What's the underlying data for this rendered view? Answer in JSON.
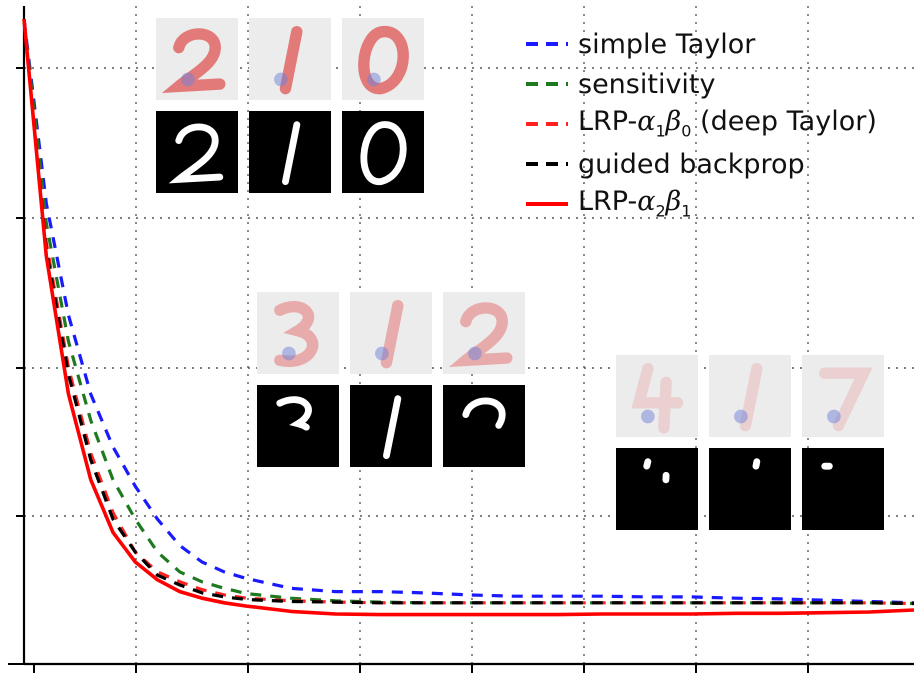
{
  "chart_data": {
    "type": "line",
    "title": "",
    "xlabel": "",
    "ylabel": "",
    "grid": true,
    "legend_position": "top-right",
    "xlim": [
      0,
      20
    ],
    "ylim": [
      0,
      1
    ],
    "series": [
      {
        "name": "simple Taylor",
        "style": "dashed",
        "color": "#1a1aff",
        "x": [
          0,
          0.5,
          1,
          1.5,
          2,
          2.5,
          3,
          3.5,
          4,
          4.5,
          5,
          6,
          7,
          8,
          9,
          10,
          11,
          12,
          13,
          14,
          15,
          16,
          17,
          18,
          19,
          20
        ],
        "y": [
          0.98,
          0.7,
          0.53,
          0.41,
          0.33,
          0.27,
          0.22,
          0.18,
          0.155,
          0.14,
          0.13,
          0.115,
          0.11,
          0.11,
          0.108,
          0.105,
          0.103,
          0.103,
          0.103,
          0.102,
          0.102,
          0.1,
          0.099,
          0.097,
          0.095,
          0.093
        ]
      },
      {
        "name": "sensitivity",
        "style": "dashed",
        "color": "#1f7a1f",
        "x": [
          0,
          0.5,
          1,
          1.5,
          2,
          2.5,
          3,
          3.5,
          4,
          4.5,
          5,
          6,
          7,
          8,
          9,
          10,
          11,
          12,
          13,
          14,
          15,
          16,
          17,
          18,
          19,
          20
        ],
        "y": [
          0.98,
          0.67,
          0.49,
          0.37,
          0.28,
          0.22,
          0.17,
          0.14,
          0.125,
          0.115,
          0.107,
          0.1,
          0.096,
          0.094,
          0.093,
          0.093,
          0.093,
          0.093,
          0.093,
          0.093,
          0.093,
          0.093,
          0.093,
          0.093,
          0.093,
          0.092
        ]
      },
      {
        "name": "LRP-α₁β₀ (deep Taylor)",
        "style": "dashed",
        "color": "#ff2020",
        "x": [
          0,
          0.5,
          1,
          1.5,
          2,
          2.5,
          3,
          3.5,
          4,
          4.5,
          5,
          6,
          7,
          8,
          9,
          10,
          11,
          12,
          13,
          14,
          15,
          16,
          17,
          18,
          19,
          20
        ],
        "y": [
          0.98,
          0.64,
          0.45,
          0.32,
          0.23,
          0.17,
          0.14,
          0.125,
          0.113,
          0.105,
          0.1,
          0.096,
          0.094,
          0.093,
          0.093,
          0.093,
          0.093,
          0.093,
          0.093,
          0.093,
          0.093,
          0.093,
          0.093,
          0.093,
          0.093,
          0.092
        ]
      },
      {
        "name": "guided backprop",
        "style": "dashed",
        "color": "#000000",
        "x": [
          0,
          0.5,
          1,
          1.5,
          2,
          2.5,
          3,
          3.5,
          4,
          4.5,
          5,
          6,
          7,
          8,
          9,
          10,
          11,
          12,
          13,
          14,
          15,
          16,
          17,
          18,
          19,
          20
        ],
        "y": [
          0.98,
          0.63,
          0.44,
          0.31,
          0.22,
          0.17,
          0.135,
          0.12,
          0.108,
          0.102,
          0.098,
          0.095,
          0.094,
          0.093,
          0.093,
          0.093,
          0.093,
          0.093,
          0.093,
          0.093,
          0.093,
          0.093,
          0.093,
          0.093,
          0.093,
          0.092
        ]
      },
      {
        "name": "LRP-α₂β₁",
        "style": "solid",
        "color": "#ff0000",
        "x": [
          0,
          0.5,
          1,
          1.5,
          2,
          2.5,
          3,
          3.5,
          4,
          4.5,
          5,
          6,
          7,
          8,
          9,
          10,
          11,
          12,
          13,
          14,
          15,
          16,
          17,
          18,
          19,
          20
        ],
        "y": [
          0.98,
          0.62,
          0.41,
          0.28,
          0.2,
          0.155,
          0.128,
          0.11,
          0.1,
          0.093,
          0.088,
          0.08,
          0.076,
          0.075,
          0.075,
          0.075,
          0.075,
          0.075,
          0.076,
          0.076,
          0.076,
          0.077,
          0.077,
          0.078,
          0.079,
          0.082
        ]
      }
    ]
  },
  "legend": {
    "entries": [
      {
        "base": "simple Taylor"
      },
      {
        "base": "sensitivity"
      },
      {
        "base": "LRP-",
        "alpha": "α",
        "alpha_sub": "1",
        "beta": "β",
        "beta_sub": "0",
        "suffix": " (deep Taylor)"
      },
      {
        "base": "guided backprop"
      },
      {
        "base": "LRP-",
        "alpha": "α",
        "alpha_sub": "2",
        "beta": "β",
        "beta_sub": "1",
        "suffix": ""
      }
    ]
  },
  "colors": {
    "heatmap_bg": "#ececec",
    "heat_red": "#e04a4a",
    "heat_blue": "#6f7fd8",
    "digit_bg": "#000000",
    "digit_fg": "#ffffff"
  },
  "thumbnail_groups": [
    {
      "name": "stage-0",
      "digits": [
        "2",
        "1",
        "0"
      ],
      "removed_fraction": 0.0
    },
    {
      "name": "stage-1",
      "digits": [
        "3",
        "1",
        "2"
      ],
      "removed_fraction": 0.55
    },
    {
      "name": "stage-2",
      "digits": [
        "4",
        "1",
        "7"
      ],
      "removed_fraction": 0.97
    }
  ]
}
